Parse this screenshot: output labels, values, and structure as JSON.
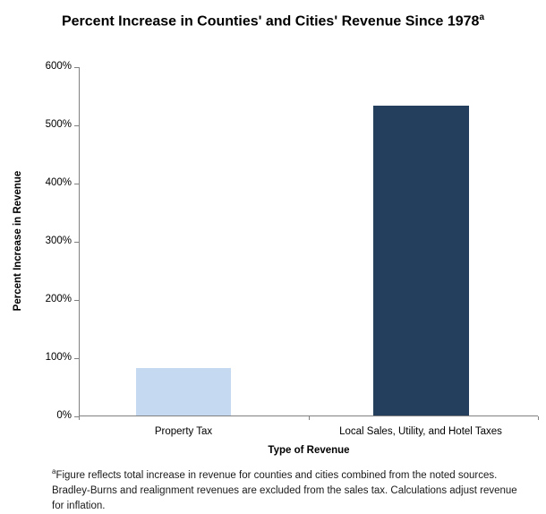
{
  "chart_data": {
    "type": "bar",
    "title": "Percent Increase in Counties' and Cities' Revenue Since 1978",
    "title_superscript": "a",
    "categories": [
      "Property Tax",
      "Local Sales, Utility, and Hotel Taxes"
    ],
    "values": [
      81,
      532
    ],
    "xlabel": "Type of Revenue",
    "ylabel": "Percent Increase in Revenue",
    "ylim": [
      0,
      600
    ],
    "ytick_interval": 100,
    "ytick_labels": [
      "0%",
      "100%",
      "200%",
      "300%",
      "400%",
      "500%",
      "600%"
    ],
    "bar_colors": [
      "#c5d9f1",
      "#243f5e"
    ],
    "axis_color": "#808080",
    "grid": false,
    "legend": false,
    "footnote_superscript": "a",
    "footnote": "Figure reflects total increase in revenue for counties and cities combined from the noted sources. Bradley-Burns and realignment revenues are excluded from the sales tax. Calculations adjust revenue for inflation."
  }
}
